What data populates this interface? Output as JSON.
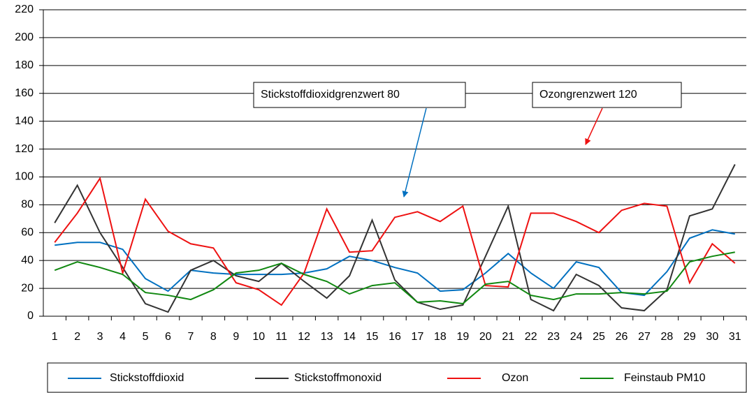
{
  "chart_data": {
    "type": "line",
    "categories": [
      "1",
      "2",
      "3",
      "4",
      "5",
      "6",
      "7",
      "8",
      "9",
      "10",
      "11",
      "12",
      "13",
      "14",
      "15",
      "16",
      "17",
      "18",
      "19",
      "20",
      "21",
      "22",
      "23",
      "24",
      "25",
      "26",
      "27",
      "28",
      "29",
      "30",
      "31"
    ],
    "series": [
      {
        "name": "Stickstoffdioxid",
        "color": "#0070c0",
        "values": [
          51,
          53,
          53,
          48,
          27,
          18,
          33,
          31,
          30,
          30,
          30,
          31,
          34,
          43,
          40,
          35,
          31,
          18,
          19,
          31,
          45,
          31,
          20,
          39,
          35,
          17,
          15,
          32,
          56,
          62,
          59
        ]
      },
      {
        "name": "Stickstoffmonoxid",
        "color": "#333333",
        "values": [
          67,
          94,
          60,
          35,
          9,
          3,
          33,
          40,
          29,
          25,
          38,
          25,
          13,
          29,
          69,
          26,
          10,
          5,
          8,
          43,
          79,
          12,
          4,
          30,
          22,
          6,
          4,
          19,
          72,
          77,
          109
        ]
      },
      {
        "name": "Ozon",
        "color": "#ee1111",
        "values": [
          53,
          74,
          99,
          31,
          84,
          61,
          52,
          49,
          24,
          19,
          8,
          31,
          77,
          46,
          47,
          71,
          75,
          68,
          79,
          22,
          21,
          74,
          74,
          68,
          60,
          76,
          81,
          79,
          24,
          52,
          38
        ]
      },
      {
        "name": "Feinstaub PM10",
        "color": "#118811",
        "values": [
          33,
          39,
          35,
          30,
          17,
          15,
          12,
          19,
          31,
          33,
          38,
          30,
          25,
          16,
          22,
          24,
          10,
          11,
          9,
          23,
          25,
          15,
          12,
          16,
          16,
          17,
          16,
          18,
          39,
          43,
          46
        ]
      }
    ],
    "ylim": [
      0,
      220
    ],
    "yticks": [
      0,
      20,
      40,
      60,
      80,
      100,
      120,
      140,
      160,
      180,
      200,
      220
    ],
    "grid": true,
    "legend": "bottom",
    "annotations": [
      {
        "text": "Stickstoffdioxidgrenzwert 80"
      },
      {
        "text": "Ozongrenzwert 120"
      }
    ]
  }
}
